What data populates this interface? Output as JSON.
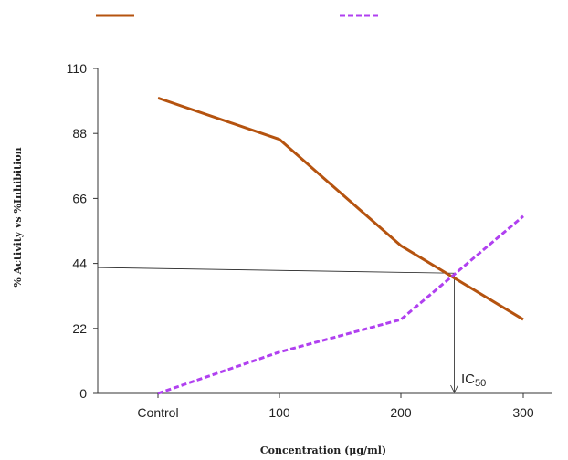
{
  "chart_data": {
    "type": "line",
    "categories": [
      "Control",
      "100",
      "200",
      "300"
    ],
    "series": [
      {
        "values": [
          100,
          86,
          50,
          25
        ],
        "color": "#b5530f",
        "style": "solid"
      },
      {
        "values": [
          0,
          14,
          25,
          60
        ],
        "color": "#b040f0",
        "style": "dashed"
      }
    ],
    "xlabel": "Concentration (μg/ml)",
    "ylabel": "% Activity vs %Inhibition",
    "ylim": [
      0,
      110
    ],
    "yticks": [
      0,
      22,
      44,
      66,
      88,
      110
    ],
    "grid": false,
    "legend_position": "top",
    "annotation": {
      "label": "IC",
      "subscript": "50",
      "x": 244,
      "y": 40.7
    }
  }
}
